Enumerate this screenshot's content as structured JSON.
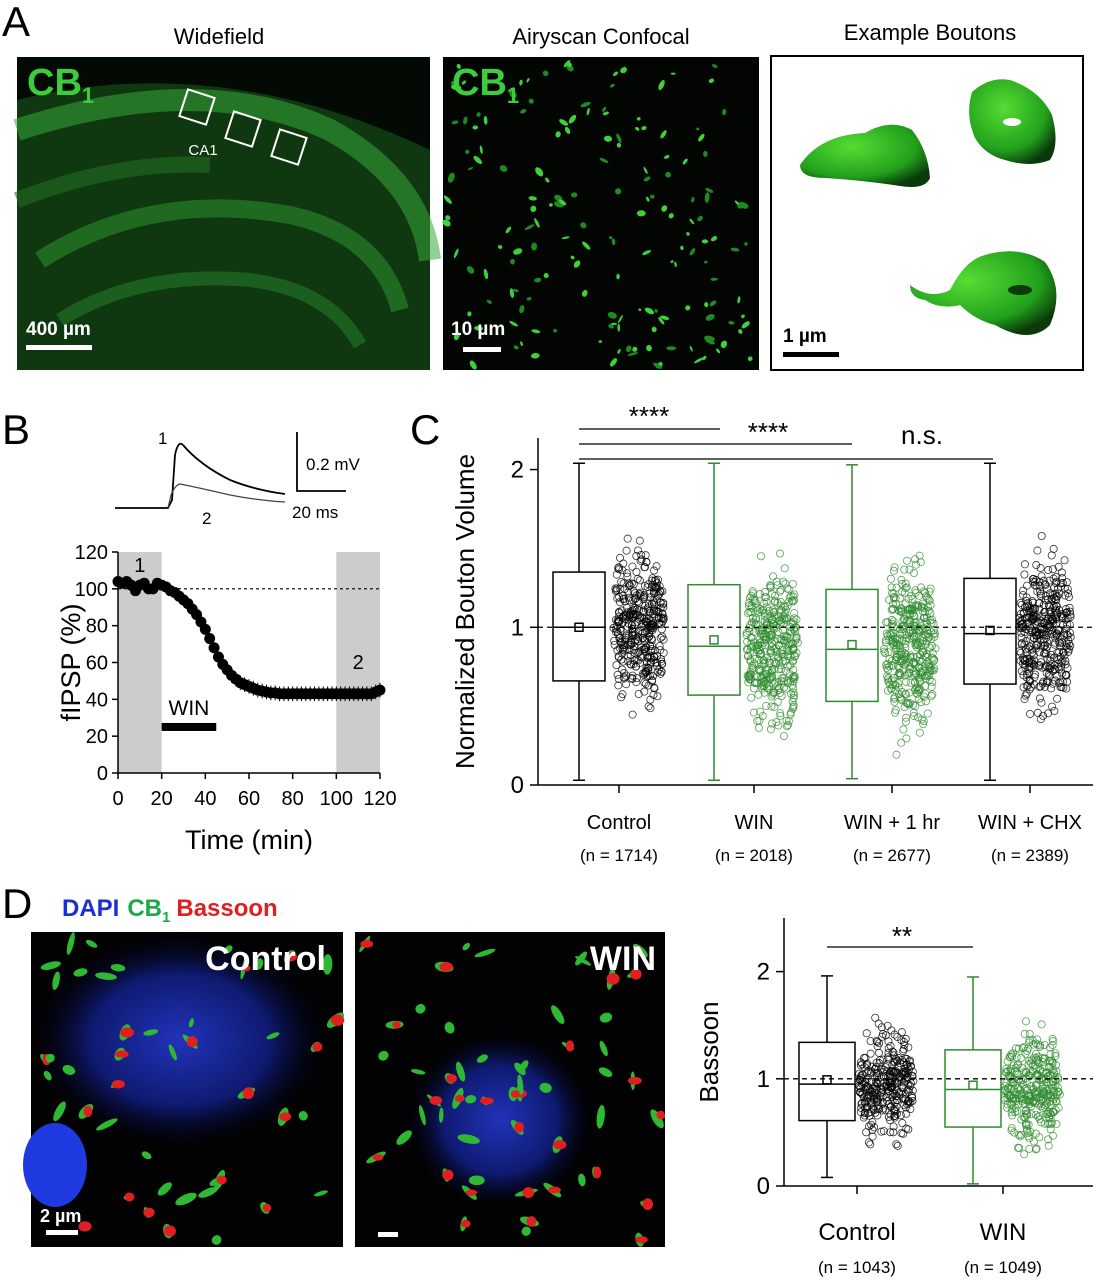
{
  "panels": {
    "A": {
      "letter": "A",
      "widefield": {
        "title": "Widefield",
        "stain": "CB",
        "stain_sub": "1",
        "region": "CA1",
        "scale": "400 µm"
      },
      "airyscan": {
        "title": "Airyscan Confocal",
        "stain": "CB",
        "stain_sub": "1",
        "scale": "10 µm"
      },
      "boutons": {
        "title": "Example Boutons",
        "scale": "1 µm"
      }
    },
    "B": {
      "letter": "B",
      "inset": {
        "label1": "1",
        "label2": "2",
        "scale_v": "0.2 mV",
        "scale_t": "20 ms"
      },
      "shade_labels": [
        "1",
        "2"
      ],
      "drug_label": "WIN"
    },
    "C": {
      "letter": "C",
      "groups": [
        {
          "label": "Control",
          "n": "(n = 1714)"
        },
        {
          "label": "WIN",
          "n": "(n = 2018)"
        },
        {
          "label": "WIN + 1 hr",
          "n": "(n = 2677)"
        },
        {
          "label": "WIN + CHX",
          "n": "(n = 2389)"
        }
      ],
      "sig": [
        "****",
        "****",
        "n.s."
      ]
    },
    "D": {
      "letter": "D",
      "legend": {
        "dapi": "DAPI",
        "cb": "CB",
        "cb_sub": "1",
        "bassoon": "Bassoon"
      },
      "control_label": "Control",
      "win_label": "WIN",
      "scale": "2 µm",
      "groups": [
        {
          "label": "Control",
          "n": "(n = 1043)"
        },
        {
          "label": "WIN",
          "n": "(n = 1049)"
        }
      ],
      "sig": "**"
    }
  },
  "colors": {
    "black": "#000000",
    "green": "#2e8b2e",
    "cb_green": "#3ccc3c",
    "dapi_blue": "#1a2fd6",
    "bassoon_red": "#e02020",
    "shade": "#cccccc"
  },
  "chart_data": [
    {
      "type": "line",
      "panel": "B",
      "xlabel": "Time (min)",
      "ylabel": "fIPSP (%)",
      "xlim": [
        0,
        120
      ],
      "ylim": [
        0,
        120
      ],
      "xticks": [
        0,
        20,
        40,
        60,
        80,
        100,
        120
      ],
      "yticks": [
        0,
        20,
        40,
        60,
        80,
        100,
        120
      ],
      "baseline": 100,
      "shaded": [
        [
          0,
          20
        ],
        [
          100,
          120
        ]
      ],
      "drug_bar": [
        20,
        45
      ],
      "x": [
        0,
        2,
        4,
        6,
        8,
        10,
        12,
        14,
        16,
        18,
        20,
        22,
        24,
        26,
        28,
        30,
        32,
        34,
        36,
        38,
        40,
        42,
        44,
        46,
        48,
        50,
        52,
        54,
        56,
        58,
        60,
        62,
        64,
        66,
        68,
        70,
        72,
        74,
        76,
        78,
        80,
        82,
        84,
        86,
        88,
        90,
        92,
        94,
        96,
        98,
        100,
        102,
        104,
        106,
        108,
        110,
        112,
        114,
        116,
        118,
        120
      ],
      "y": [
        104,
        103,
        104,
        102,
        99,
        102,
        103,
        100,
        100,
        103,
        102,
        101,
        99,
        98,
        96,
        94,
        92,
        89,
        86,
        82,
        78,
        73,
        68,
        63,
        59,
        56,
        53,
        51,
        49,
        48,
        47,
        46,
        45,
        44.5,
        44,
        43.5,
        43.5,
        43,
        43,
        43,
        43,
        43,
        43,
        43,
        43,
        43,
        43,
        43,
        43,
        43,
        43,
        43,
        43,
        43,
        43,
        43,
        43,
        43,
        43,
        44,
        45
      ]
    },
    {
      "type": "box",
      "panel": "C",
      "ylabel": "Normalized Bouton Volume",
      "ylim": [
        0,
        2.2
      ],
      "yticks": [
        0,
        1,
        2
      ],
      "reference_line": 1,
      "categories": [
        "Control",
        "WIN",
        "WIN + 1 hr",
        "WIN + CHX"
      ],
      "series": [
        {
          "color": "black",
          "whisker_low": 0.03,
          "q1": 0.66,
          "median": 1.0,
          "mean": 1.0,
          "q3": 1.35,
          "whisker_high": 2.04
        },
        {
          "color": "green",
          "whisker_low": 0.03,
          "q1": 0.57,
          "median": 0.88,
          "mean": 0.92,
          "q3": 1.27,
          "whisker_high": 2.04
        },
        {
          "color": "green",
          "whisker_low": 0.04,
          "q1": 0.53,
          "median": 0.86,
          "mean": 0.89,
          "q3": 1.24,
          "whisker_high": 2.03
        },
        {
          "color": "black",
          "whisker_low": 0.03,
          "q1": 0.64,
          "median": 0.96,
          "mean": 0.98,
          "q3": 1.31,
          "whisker_high": 2.04
        }
      ]
    },
    {
      "type": "box",
      "panel": "D",
      "ylabel": "Bassoon",
      "ylim": [
        0,
        2.5
      ],
      "yticks": [
        0,
        1,
        2
      ],
      "reference_line": 1,
      "categories": [
        "Control",
        "WIN"
      ],
      "series": [
        {
          "color": "black",
          "whisker_low": 0.08,
          "q1": 0.61,
          "median": 0.95,
          "mean": 0.99,
          "q3": 1.34,
          "whisker_high": 1.96
        },
        {
          "color": "green",
          "whisker_low": 0.02,
          "q1": 0.55,
          "median": 0.9,
          "mean": 0.94,
          "q3": 1.27,
          "whisker_high": 1.95
        }
      ]
    }
  ]
}
